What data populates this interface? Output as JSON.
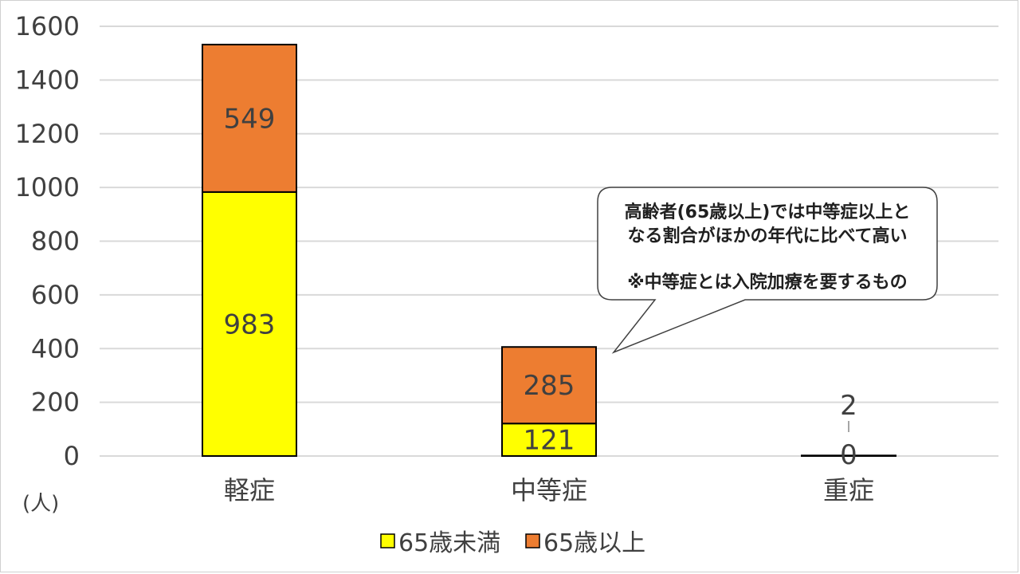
{
  "chart_data": {
    "type": "bar",
    "stacked": true,
    "categories": [
      "軽症",
      "中等症",
      "重症"
    ],
    "series": [
      {
        "name": "65歳未満",
        "values": [
          983,
          121,
          0
        ],
        "color": "#FFFF00"
      },
      {
        "name": "65歳以上",
        "values": [
          549,
          285,
          2
        ],
        "color": "#ED7D31"
      }
    ],
    "ylim": [
      0,
      1600
    ],
    "yticks": [
      0,
      200,
      400,
      600,
      800,
      1000,
      1200,
      1400,
      1600
    ],
    "ylabel": "(人)",
    "grid": true,
    "legend_position": "bottom",
    "annotation": {
      "lines": [
        "高齢者(65歳以上)では中等症以上と",
        "なる割合がほかの年代に比べて高い",
        "",
        "※中等症とは入院加療を要するもの"
      ],
      "points_to": "中等症"
    }
  }
}
